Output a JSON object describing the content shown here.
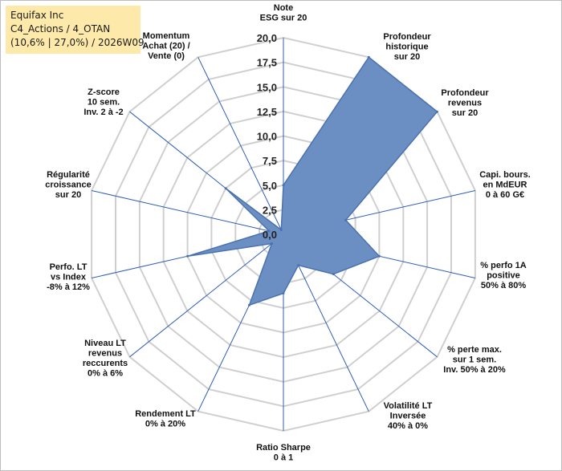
{
  "title_box": {
    "line1": "Equifax Inc",
    "line2": "C4_Actions / 4_OTAN",
    "line3": "(10,6% | 27,0%) / 2026W09"
  },
  "chart_data": {
    "type": "radar",
    "axes": [
      [
        "Note",
        "ESG sur 20"
      ],
      [
        "Profondeur",
        "historique",
        "sur 20"
      ],
      [
        "Profondeur",
        "revenus",
        "sur 20"
      ],
      [
        "Capi. bours.",
        "en MdEUR",
        "0 à 60 G€"
      ],
      [
        "% perfo 1A",
        "positive",
        "50% à 80%"
      ],
      [
        "% perte max.",
        "sur 1 sem.",
        "Inv. 50% à 20%"
      ],
      [
        "Volatilité LT",
        "Inversée",
        "40% à 0%"
      ],
      [
        "Ratio Sharpe",
        "0 à 1"
      ],
      [
        "Rendement LT",
        "0% à 20%"
      ],
      [
        "Niveau LT",
        "revenus",
        "reccurents",
        "0% à 6%"
      ],
      [
        "Perfo. LT",
        "vs Index",
        "-8% à 12%"
      ],
      [
        "Régularité",
        "croissance",
        "sur 20"
      ],
      [
        "Z-score",
        "10 sem.",
        "Inv. 2 à -2"
      ],
      [
        "Momentum",
        "Achat (20) /",
        "Vente (0)"
      ]
    ],
    "values": [
      5.0,
      20.0,
      20.0,
      6.5,
      10.0,
      6.5,
      3.5,
      6.0,
      8.0,
      1.5,
      10.0,
      1.5,
      7.5,
      0.5
    ],
    "r_range": [
      0,
      20
    ],
    "tick_values": [
      0,
      2.5,
      5,
      7.5,
      10,
      12.5,
      15,
      17.5,
      20
    ],
    "tick_labels": [
      "0,0",
      "2,5",
      "5,0",
      "7,5",
      "10,0",
      "12,5",
      "15,0",
      "17,5",
      "20,0"
    ],
    "colors": {
      "fill": "#6b8fc3",
      "stroke": "#4a72b0",
      "grid": "#cfcfcf",
      "spoke": "#2f5fb3"
    },
    "legend": "none"
  }
}
